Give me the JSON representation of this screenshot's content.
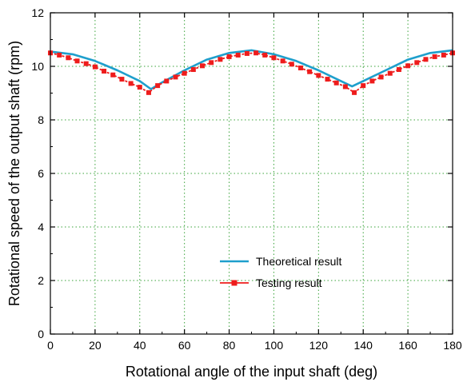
{
  "chart_data": {
    "type": "line",
    "title": "",
    "xlabel": "Rotational angle of the input shaft (deg)",
    "ylabel": "Rotational speed of the output shaft (rpm)",
    "xlim": [
      0,
      180
    ],
    "ylim": [
      0,
      12
    ],
    "x_ticks": [
      "0",
      "20",
      "40",
      "60",
      "80",
      "100",
      "120",
      "140",
      "160",
      "180"
    ],
    "y_ticks": [
      "0",
      "2",
      "4",
      "6",
      "8",
      "10",
      "12"
    ],
    "grid": true,
    "legend_position": "bottom-center",
    "series": [
      {
        "name": "Theoretical result",
        "color": "#1e9fcc",
        "marker": "none",
        "x": [
          0,
          10,
          20,
          30,
          40,
          45,
          50,
          60,
          70,
          80,
          90,
          100,
          110,
          120,
          130,
          135,
          140,
          150,
          160,
          170,
          180
        ],
        "values": [
          10.55,
          10.45,
          10.2,
          9.85,
          9.45,
          9.15,
          9.4,
          9.85,
          10.25,
          10.5,
          10.6,
          10.45,
          10.2,
          9.85,
          9.45,
          9.25,
          9.45,
          9.85,
          10.25,
          10.5,
          10.6
        ]
      },
      {
        "name": "Testing result",
        "color": "#ee1c1c",
        "marker": "square",
        "x": [
          0,
          4,
          8,
          12,
          16,
          20,
          24,
          28,
          32,
          36,
          40,
          44,
          48,
          52,
          56,
          60,
          64,
          68,
          72,
          76,
          80,
          84,
          88,
          92,
          96,
          100,
          104,
          108,
          112,
          116,
          120,
          124,
          128,
          132,
          136,
          140,
          144,
          148,
          152,
          156,
          160,
          164,
          168,
          172,
          176,
          180
        ],
        "values": [
          10.5,
          10.42,
          10.32,
          10.2,
          10.1,
          9.98,
          9.82,
          9.68,
          9.52,
          9.36,
          9.22,
          9.02,
          9.28,
          9.45,
          9.6,
          9.74,
          9.88,
          10.02,
          10.14,
          10.26,
          10.36,
          10.42,
          10.48,
          10.5,
          10.42,
          10.32,
          10.2,
          10.08,
          9.94,
          9.8,
          9.66,
          9.52,
          9.38,
          9.24,
          9.02,
          9.28,
          9.45,
          9.6,
          9.74,
          9.88,
          10.02,
          10.14,
          10.26,
          10.36,
          10.42,
          10.5
        ]
      }
    ]
  }
}
